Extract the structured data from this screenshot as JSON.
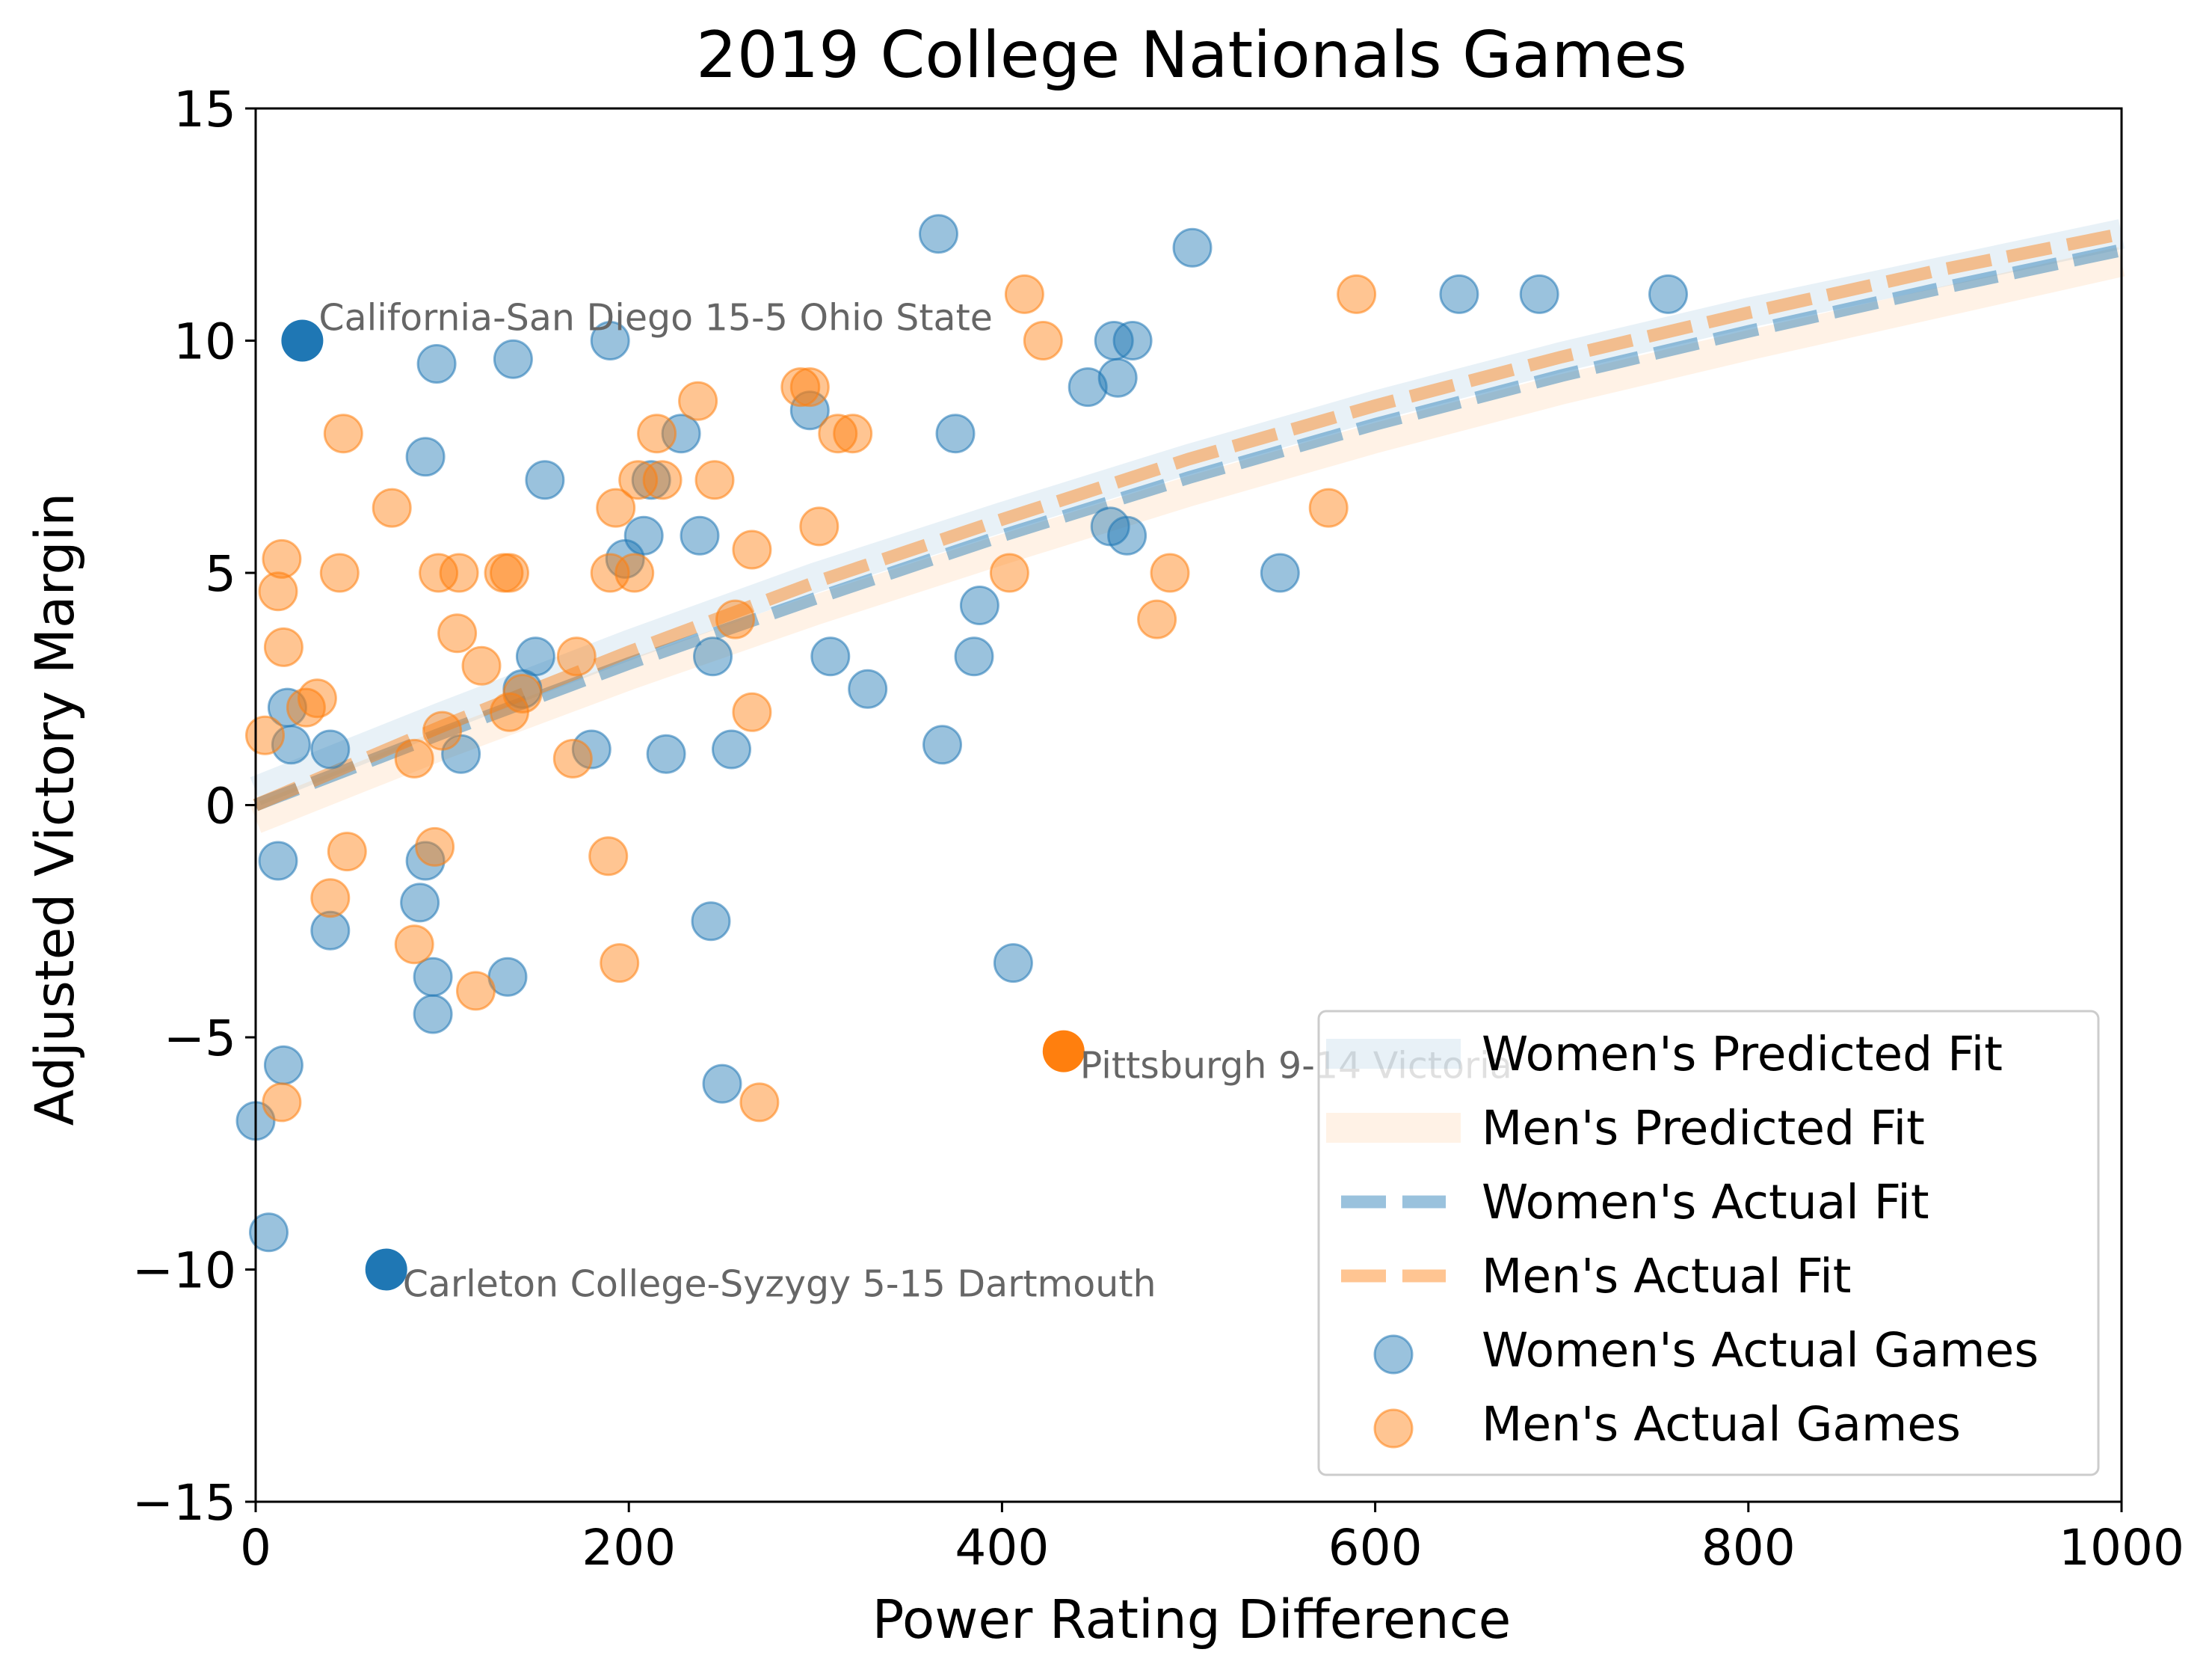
{
  "chart_data": {
    "type": "scatter",
    "title": "2019 College Nationals Games",
    "xlabel": "Power Rating Difference",
    "ylabel": "Adjusted Victory Margin",
    "xlim": [
      0,
      1000
    ],
    "ylim": [
      -15,
      15
    ],
    "x_ticks": [
      0,
      200,
      400,
      600,
      800,
      1000
    ],
    "x_tick_labels": [
      "0",
      "200",
      "400",
      "600",
      "800",
      "1000"
    ],
    "y_ticks": [
      -15,
      -10,
      -5,
      0,
      5,
      10,
      15
    ],
    "y_tick_labels": [
      "−15",
      "−10",
      "−5",
      "0",
      "5",
      "10",
      "15"
    ],
    "grid": false,
    "legend_position": "lower-right",
    "colors": {
      "women": "#1f77b4",
      "men": "#ff7f0e"
    },
    "fit_lines": [
      {
        "name": "Women's Predicted Fit",
        "style": "solid-wide-faint",
        "color": "#1f77b4",
        "points": [
          [
            0,
            0.3
          ],
          [
            100,
            1.9
          ],
          [
            200,
            3.45
          ],
          [
            300,
            4.9
          ],
          [
            400,
            6.2
          ],
          [
            500,
            7.45
          ],
          [
            600,
            8.6
          ],
          [
            700,
            9.65
          ],
          [
            800,
            10.6
          ],
          [
            900,
            11.45
          ],
          [
            1000,
            12.3
          ]
        ]
      },
      {
        "name": "Men's Predicted Fit",
        "style": "solid-wide-faint",
        "color": "#ff7f0e",
        "points": [
          [
            0,
            -0.3
          ],
          [
            100,
            1.3
          ],
          [
            200,
            2.8
          ],
          [
            300,
            4.2
          ],
          [
            400,
            5.5
          ],
          [
            500,
            6.75
          ],
          [
            600,
            7.9
          ],
          [
            700,
            8.95
          ],
          [
            800,
            9.9
          ],
          [
            900,
            10.8
          ],
          [
            1000,
            11.7
          ]
        ]
      },
      {
        "name": "Women's Actual Fit",
        "style": "dashed",
        "color": "#1f77b4",
        "points": [
          [
            0,
            0
          ],
          [
            100,
            1.55
          ],
          [
            200,
            3.05
          ],
          [
            300,
            4.45
          ],
          [
            400,
            5.8
          ],
          [
            500,
            7.05
          ],
          [
            600,
            8.2
          ],
          [
            700,
            9.25
          ],
          [
            800,
            10.2
          ],
          [
            900,
            11.1
          ],
          [
            1000,
            11.95
          ]
        ]
      },
      {
        "name": "Men's Actual Fit",
        "style": "dashed",
        "color": "#ff7f0e",
        "points": [
          [
            0,
            0
          ],
          [
            100,
            1.7
          ],
          [
            200,
            3.3
          ],
          [
            300,
            4.8
          ],
          [
            400,
            6.15
          ],
          [
            500,
            7.45
          ],
          [
            600,
            8.6
          ],
          [
            700,
            9.65
          ],
          [
            800,
            10.6
          ],
          [
            900,
            11.5
          ],
          [
            1000,
            12.3
          ]
        ]
      }
    ],
    "series": [
      {
        "name": "Women's Actual Games",
        "color": "#1f77b4",
        "points": [
          [
            0,
            -6.8
          ],
          [
            7,
            -9.2
          ],
          [
            12,
            -1.2
          ],
          [
            15,
            -5.6
          ],
          [
            17,
            2.1
          ],
          [
            19,
            1.3
          ],
          [
            40,
            1.2
          ],
          [
            40,
            -2.7
          ],
          [
            88,
            -2.1
          ],
          [
            91,
            -1.2
          ],
          [
            91,
            7.5
          ],
          [
            95,
            -3.7
          ],
          [
            95,
            -4.5
          ],
          [
            97,
            9.5
          ],
          [
            110,
            1.1
          ],
          [
            135,
            -3.7
          ],
          [
            138,
            9.6
          ],
          [
            143,
            2.5
          ],
          [
            150,
            3.2
          ],
          [
            155,
            7.0
          ],
          [
            180,
            1.2
          ],
          [
            190,
            10.0
          ],
          [
            198,
            5.3
          ],
          [
            208,
            5.8
          ],
          [
            212,
            7.0
          ],
          [
            220,
            1.1
          ],
          [
            228,
            8.0
          ],
          [
            238,
            5.8
          ],
          [
            245,
            3.2
          ],
          [
            244,
            -2.5
          ],
          [
            250,
            -6.0
          ],
          [
            255,
            1.2
          ],
          [
            297,
            8.5
          ],
          [
            308,
            3.2
          ],
          [
            328,
            2.5
          ],
          [
            366,
            12.3
          ],
          [
            368,
            1.3
          ],
          [
            375,
            8.0
          ],
          [
            385,
            3.2
          ],
          [
            388,
            4.3
          ],
          [
            406,
            -3.4
          ],
          [
            446,
            9.0
          ],
          [
            458,
            6.0
          ],
          [
            460,
            10.0
          ],
          [
            462,
            9.2
          ],
          [
            467,
            5.8
          ],
          [
            470,
            10.0
          ],
          [
            502,
            12.0
          ],
          [
            549,
            5.0
          ],
          [
            645,
            11.0
          ],
          [
            688,
            11.0
          ],
          [
            757,
            11.0
          ]
        ]
      },
      {
        "name": "Men's Actual Games",
        "color": "#ff7f0e",
        "points": [
          [
            5,
            1.5
          ],
          [
            12,
            4.6
          ],
          [
            14,
            5.3
          ],
          [
            15,
            3.4
          ],
          [
            14,
            -6.4
          ],
          [
            27,
            2.1
          ],
          [
            33,
            2.3
          ],
          [
            40,
            -2.0
          ],
          [
            45,
            5.0
          ],
          [
            47,
            8.0
          ],
          [
            49,
            -1.0
          ],
          [
            73,
            6.4
          ],
          [
            85,
            1.0
          ],
          [
            85,
            -3.0
          ],
          [
            96,
            -0.9
          ],
          [
            98,
            5.0
          ],
          [
            100,
            1.6
          ],
          [
            108,
            3.7
          ],
          [
            109,
            5.0
          ],
          [
            118,
            -4.0
          ],
          [
            121,
            3.0
          ],
          [
            133,
            5.0
          ],
          [
            136,
            5.0
          ],
          [
            136,
            2.0
          ],
          [
            143,
            2.4
          ],
          [
            170,
            1.0
          ],
          [
            172,
            3.2
          ],
          [
            189,
            -1.1
          ],
          [
            190,
            5.0
          ],
          [
            193,
            6.4
          ],
          [
            195,
            -3.4
          ],
          [
            203,
            5.0
          ],
          [
            205,
            7.0
          ],
          [
            215,
            8.0
          ],
          [
            218,
            7.0
          ],
          [
            237,
            8.7
          ],
          [
            246,
            7.0
          ],
          [
            257,
            4.0
          ],
          [
            266,
            5.5
          ],
          [
            266,
            2.0
          ],
          [
            270,
            -6.4
          ],
          [
            292,
            9.0
          ],
          [
            297,
            9.0
          ],
          [
            302,
            6.0
          ],
          [
            312,
            8.0
          ],
          [
            320,
            8.0
          ],
          [
            404,
            5.0
          ],
          [
            412,
            11.0
          ],
          [
            422,
            10.0
          ],
          [
            483,
            4.0
          ],
          [
            490,
            5.0
          ],
          [
            575,
            6.4
          ],
          [
            590,
            11.0
          ]
        ]
      }
    ],
    "highlighted_games": [
      {
        "label": "California-San Diego 15-5 Ohio State",
        "x": 25,
        "y": 10,
        "series": "women"
      },
      {
        "label": "Carleton College-Syzygy 5-15 Dartmouth",
        "x": 70,
        "y": -10,
        "series": "women"
      },
      {
        "label": "Pittsburgh 9-14 Victoria",
        "x": 433,
        "y": -5.3,
        "series": "men"
      }
    ],
    "legend": [
      {
        "label": "Women's Predicted Fit",
        "kind": "wide-line",
        "series": "women"
      },
      {
        "label": "Men's Predicted Fit",
        "kind": "wide-line",
        "series": "men"
      },
      {
        "label": "Women's Actual Fit",
        "kind": "dashed-line",
        "series": "women"
      },
      {
        "label": "Men's Actual Fit",
        "kind": "dashed-line",
        "series": "men"
      },
      {
        "label": "Women's Actual Games",
        "kind": "marker",
        "series": "women"
      },
      {
        "label": "Men's Actual Games",
        "kind": "marker",
        "series": "men"
      }
    ]
  }
}
